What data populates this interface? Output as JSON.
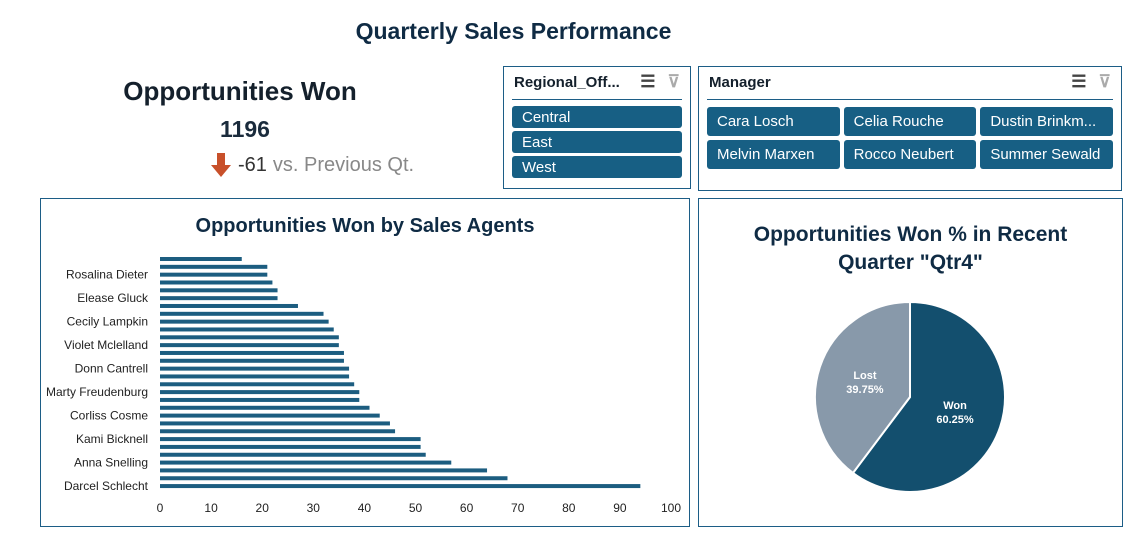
{
  "title": "Quarterly Sales Performance",
  "kpi": {
    "title": "Opportunities Won",
    "value": "1196",
    "delta": "-61",
    "delta_label": "vs. Previous Qt.",
    "delta_icon": "arrow-down-icon"
  },
  "regional_slicer": {
    "title": "Regional_Off...",
    "items": [
      "Central",
      "East",
      "West"
    ]
  },
  "manager_slicer": {
    "title": "Manager",
    "items": [
      "Cara Losch",
      "Celia Rouche",
      "Dustin Brinkm...",
      "Melvin Marxen",
      "Rocco Neubert",
      "Summer Sewald"
    ]
  },
  "colors": {
    "bar": "#1c5d80",
    "won": "#134f6e",
    "lost": "#8899aa",
    "accent": "#175f84"
  },
  "chart_data": [
    {
      "type": "bar",
      "orientation": "horizontal",
      "title": "Opportunities Won by Sales Agents",
      "categories": [
        "",
        "",
        "Rosalina Dieter",
        "",
        "",
        "Elease Gluck",
        "",
        "",
        "Cecily Lampkin",
        "",
        "",
        "Violet Mclelland",
        "",
        "",
        "Donn Cantrell",
        "",
        "",
        "Marty Freudenburg",
        "",
        "",
        "Corliss Cosme",
        "",
        "",
        "Kami Bicknell",
        "",
        "",
        "Anna Snelling",
        "",
        "",
        "Darcel Schlecht"
      ],
      "values": [
        16,
        21,
        21,
        22,
        23,
        23,
        27,
        32,
        33,
        34,
        35,
        35,
        36,
        36,
        37,
        37,
        38,
        39,
        39,
        41,
        43,
        45,
        46,
        51,
        51,
        52,
        57,
        64,
        68,
        94
      ],
      "xlim": [
        0,
        100
      ],
      "xticks": [
        0,
        10,
        20,
        30,
        40,
        50,
        60,
        70,
        80,
        90,
        100
      ]
    },
    {
      "type": "pie",
      "title": "Opportunities Won % in Recent Quarter \"Qtr4\"",
      "title_lines": [
        "Opportunities Won % in Recent",
        "Quarter \"Qtr4\""
      ],
      "slices": [
        {
          "label": "Won",
          "value": 60.25,
          "text": "60.25%"
        },
        {
          "label": "Lost",
          "value": 39.75,
          "text": "39.75%"
        }
      ]
    }
  ]
}
